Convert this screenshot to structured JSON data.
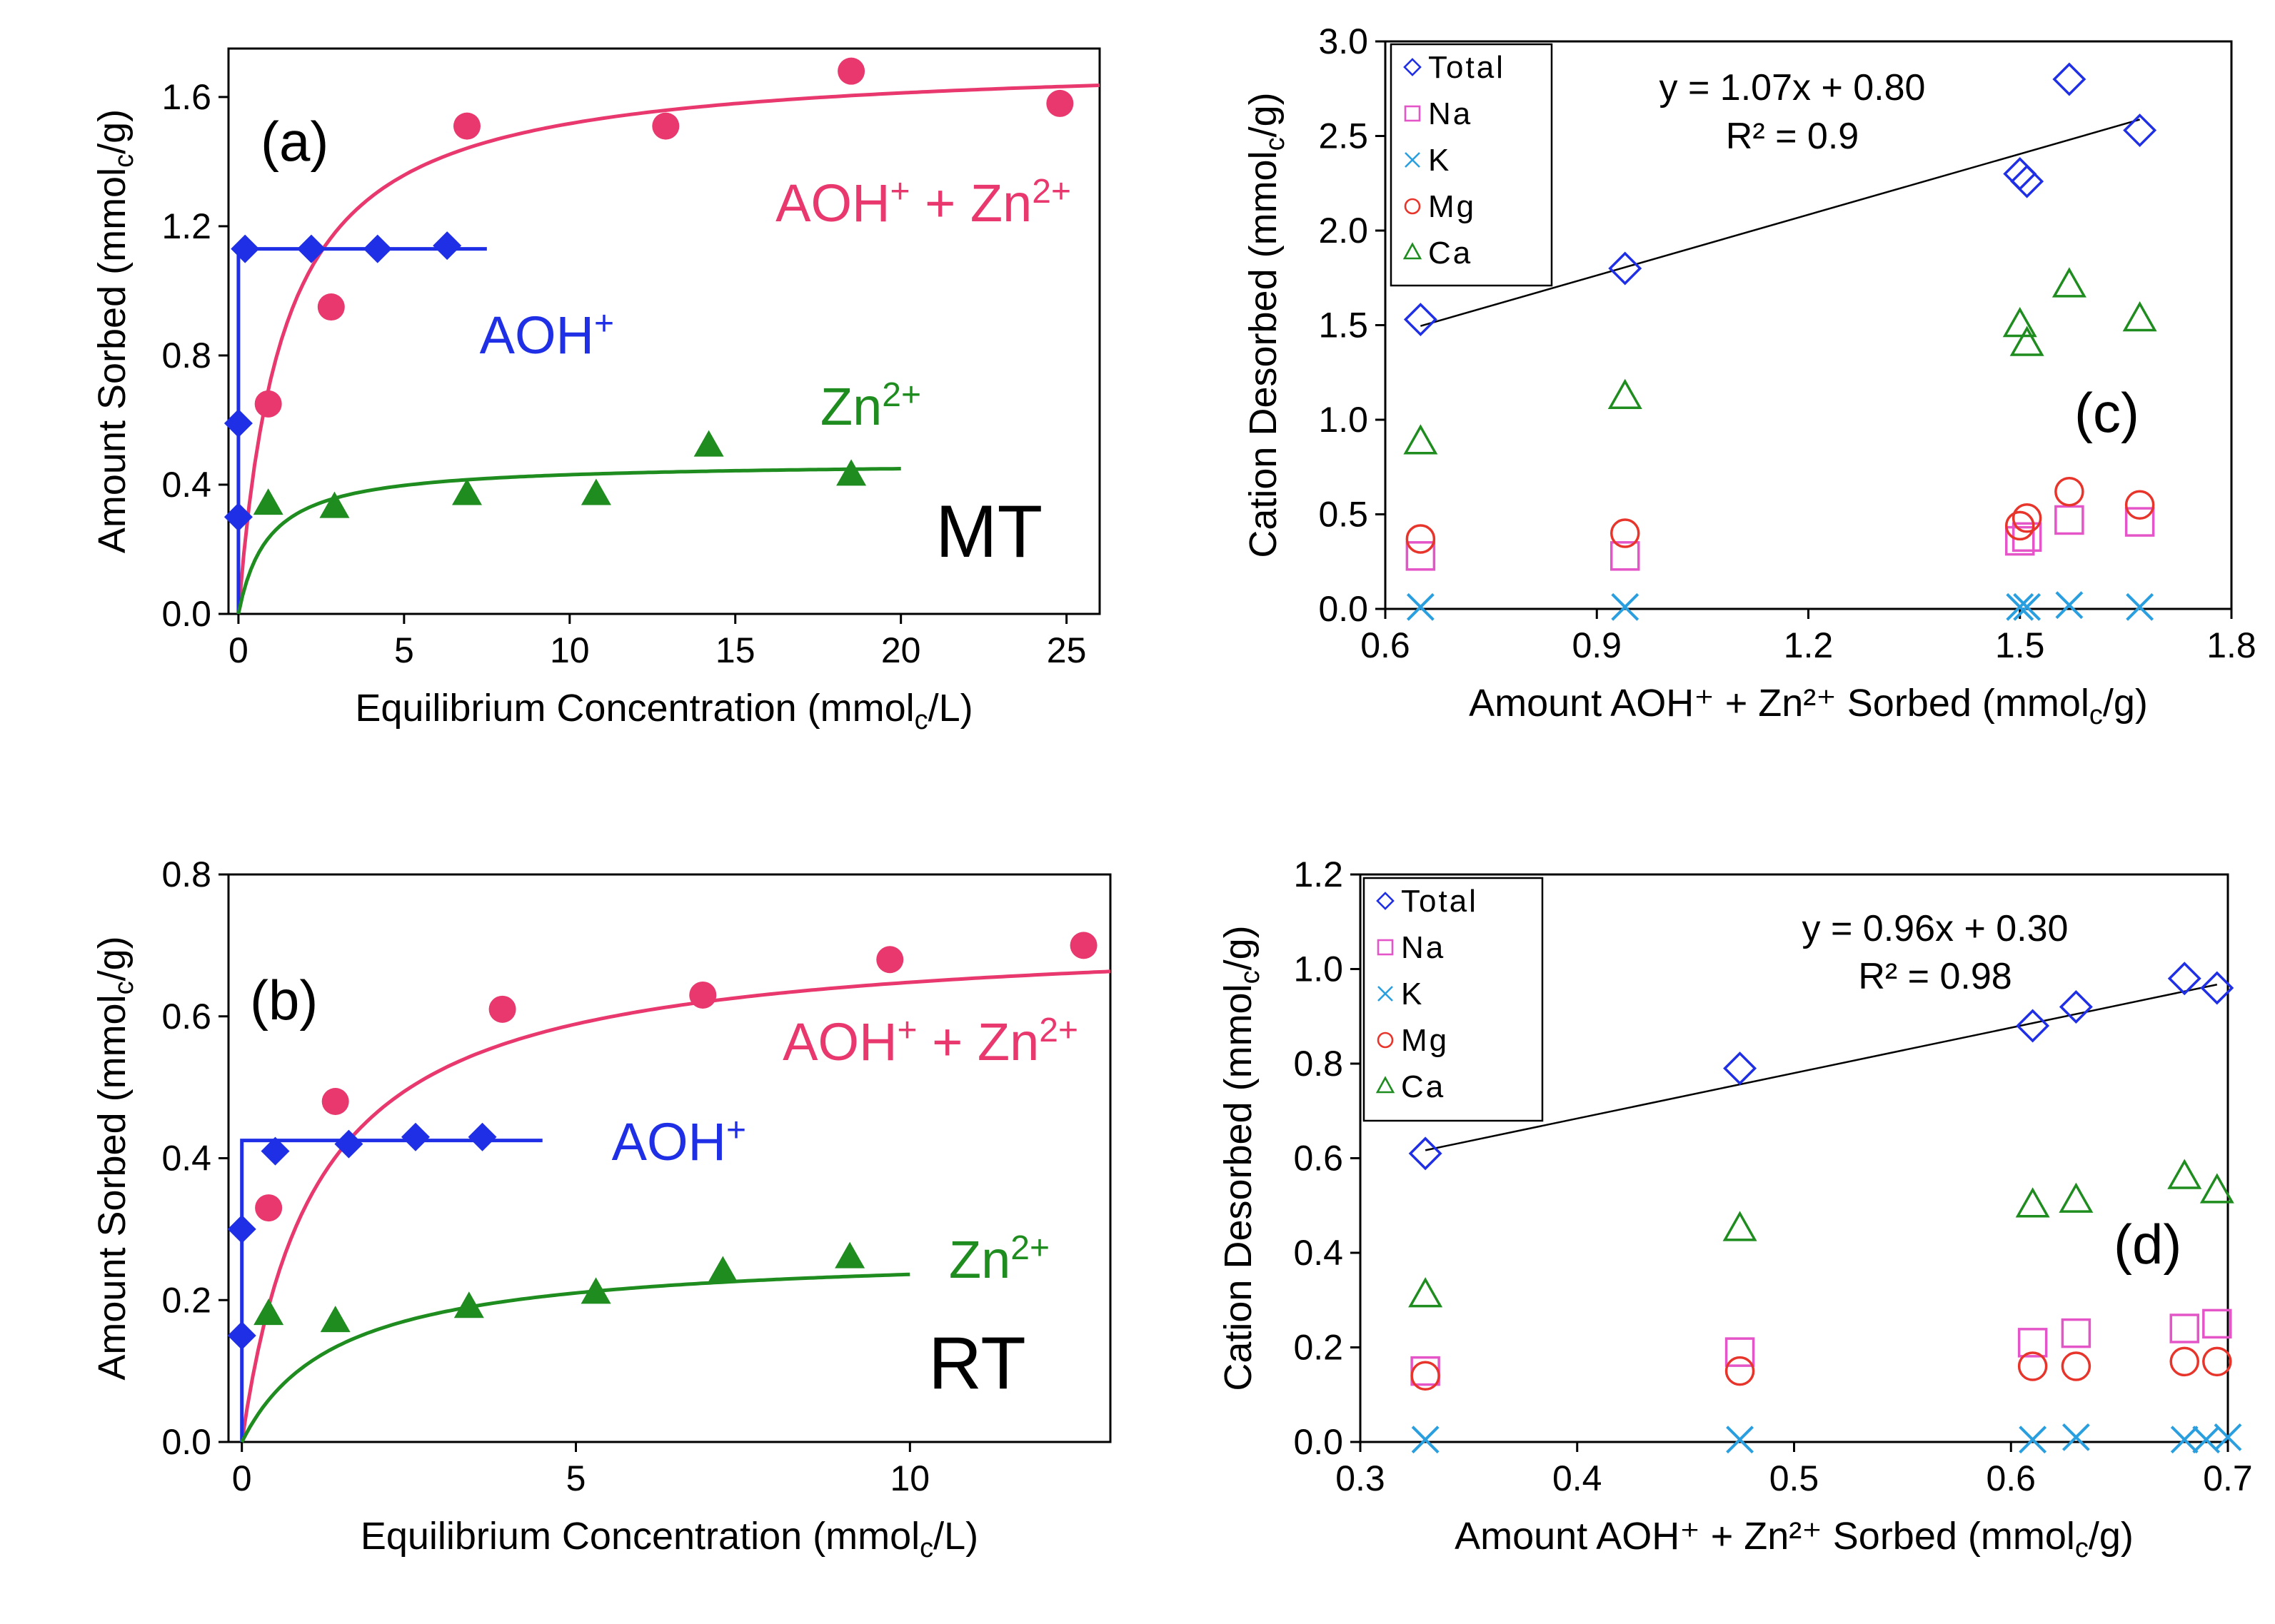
{
  "colors": {
    "pink": "#e8386e",
    "blue": "#1f2fe6",
    "green": "#1e8c1e",
    "magenta": "#e455c8",
    "cyan": "#2a9fe0",
    "red": "#e8352b",
    "black": "#000000"
  },
  "chart_data": [
    {
      "id": "a",
      "type": "scatter",
      "panel_label": "(a)",
      "tag": "MT",
      "xlabel": "Equilibrium Concentration (mmol",
      "xlabel_sub": "c",
      "xlabel_end": "/L)",
      "ylabel": "Amount Sorbed (mmol",
      "ylabel_sub": "c",
      "ylabel_end": "/g)",
      "xlim": [
        -0.3,
        26
      ],
      "ylim": [
        0,
        1.75
      ],
      "xticks": [
        0,
        5,
        10,
        15,
        20,
        25
      ],
      "yticks": [
        0.0,
        0.4,
        0.8,
        1.2,
        1.6
      ],
      "ytick_labels": [
        "0.0",
        "0.4",
        "0.8",
        "1.2",
        "1.6"
      ],
      "series": [
        {
          "name": "AOH⁺ + Zn²⁺",
          "color": "#e8386e",
          "marker": "circle",
          "x": [
            0.9,
            2.8,
            6.9,
            12.9,
            18.5,
            24.8
          ],
          "y": [
            0.65,
            0.95,
            1.51,
            1.51,
            1.68,
            1.58
          ],
          "fit": {
            "qmax": 1.72,
            "k": 0.75,
            "x_end": 26
          },
          "label_parts": [
            "AOH",
            "+",
            " + Zn",
            "2+"
          ]
        },
        {
          "name": "AOH⁺",
          "color": "#1f2fe6",
          "marker": "diamond",
          "x": [
            0,
            0,
            0.2,
            2.2,
            4.2,
            6.3
          ],
          "y": [
            0.3,
            0.59,
            1.13,
            1.13,
            1.13,
            1.14
          ],
          "fit": {
            "step_x": 0.05,
            "level": 1.13,
            "x_end": 7.5
          },
          "label_parts": [
            "AOH",
            "+"
          ]
        },
        {
          "name": "Zn²⁺",
          "color": "#1e8c1e",
          "marker": "triangle",
          "x": [
            0.9,
            2.9,
            6.9,
            10.8,
            14.2,
            18.5
          ],
          "y": [
            0.34,
            0.33,
            0.37,
            0.37,
            0.52,
            0.43
          ],
          "fit": {
            "qmax": 0.47,
            "k": 1.1,
            "x_end": 20
          },
          "label_parts": [
            "Zn",
            "2+"
          ]
        }
      ]
    },
    {
      "id": "b",
      "type": "scatter",
      "panel_label": "(b)",
      "tag": "RT",
      "xlabel": "Equilibrium Concentration (mmol",
      "xlabel_sub": "c",
      "xlabel_end": "/L)",
      "ylabel": "Amount Sorbed (mmol",
      "ylabel_sub": "c",
      "ylabel_end": "/g)",
      "xlim": [
        -0.2,
        13
      ],
      "ylim": [
        0,
        0.8
      ],
      "xticks": [
        0,
        5,
        10
      ],
      "yticks": [
        0.0,
        0.2,
        0.4,
        0.6,
        0.8
      ],
      "ytick_labels": [
        "0.0",
        "0.2",
        "0.4",
        "0.6",
        "0.8"
      ],
      "series": [
        {
          "name": "AOH⁺ + Zn²⁺",
          "color": "#e8386e",
          "marker": "circle",
          "x": [
            0.4,
            1.4,
            3.9,
            6.9,
            9.7,
            12.6
          ],
          "y": [
            0.33,
            0.48,
            0.61,
            0.63,
            0.68,
            0.7
          ],
          "fit": {
            "qmax": 0.72,
            "k": 0.9,
            "x_end": 13
          },
          "label_parts": [
            "AOH",
            "+",
            " + Zn",
            "2+"
          ]
        },
        {
          "name": "AOH⁺",
          "color": "#1f2fe6",
          "marker": "diamond",
          "x": [
            0,
            0,
            0.5,
            1.6,
            2.6,
            3.6
          ],
          "y": [
            0.15,
            0.3,
            0.41,
            0.42,
            0.43,
            0.43
          ],
          "fit": {
            "step_x": 0.03,
            "level": 0.425,
            "x_end": 4.5
          },
          "label_parts": [
            "AOH",
            "+"
          ]
        },
        {
          "name": "Zn²⁺",
          "color": "#1e8c1e",
          "marker": "triangle",
          "x": [
            0.4,
            1.4,
            3.4,
            5.3,
            7.2,
            9.1
          ],
          "y": [
            0.18,
            0.17,
            0.19,
            0.21,
            0.24,
            0.26
          ],
          "fit": {
            "qmax": 0.27,
            "k": 0.7,
            "x_end": 10
          },
          "label_parts": [
            "Zn",
            "2+"
          ]
        }
      ]
    },
    {
      "id": "c",
      "type": "scatter",
      "panel_label": "(c)",
      "xlabel": "Amount AOH⁺ + Zn²⁺ Sorbed (mmol",
      "xlabel_sub": "c",
      "xlabel_end": "/g)",
      "ylabel": "Cation Desorbed (mmol",
      "ylabel_sub": "c",
      "ylabel_end": "/g)",
      "xlim": [
        0.6,
        1.8
      ],
      "ylim": [
        0,
        3.0
      ],
      "xticks": [
        0.6,
        0.9,
        1.2,
        1.5,
        1.8
      ],
      "xtick_labels": [
        "0.6",
        "0.9",
        "1.2",
        "1.5",
        "1.8"
      ],
      "yticks": [
        0.0,
        0.5,
        1.0,
        1.5,
        2.0,
        2.5,
        3.0
      ],
      "ytick_labels": [
        "0.0",
        "0.5",
        "1.0",
        "1.5",
        "2.0",
        "2.5",
        "3.0"
      ],
      "equation": "y = 1.07x + 0.80",
      "r2": "R² = 0.9",
      "trend": {
        "slope": 1.07,
        "intercept": 0.8,
        "x0": 0.65,
        "x1": 1.67
      },
      "series": [
        {
          "name": "Total",
          "color": "#1f2fe6",
          "marker": "diamond_open",
          "x": [
            0.65,
            0.94,
            1.5,
            1.51,
            1.57,
            1.67
          ],
          "y": [
            1.53,
            1.8,
            2.3,
            2.26,
            2.8,
            2.53
          ]
        },
        {
          "name": "Na",
          "color": "#e455c8",
          "marker": "square_open",
          "x": [
            0.65,
            0.94,
            1.5,
            1.51,
            1.57,
            1.67
          ],
          "y": [
            0.28,
            0.28,
            0.36,
            0.38,
            0.47,
            0.46
          ]
        },
        {
          "name": "K",
          "color": "#2a9fe0",
          "marker": "x",
          "x": [
            0.65,
            0.94,
            1.5,
            1.51,
            1.57,
            1.67
          ],
          "y": [
            0.01,
            0.01,
            0.01,
            0.01,
            0.02,
            0.01
          ]
        },
        {
          "name": "Mg",
          "color": "#e8352b",
          "marker": "circle_open",
          "x": [
            0.65,
            0.94,
            1.5,
            1.51,
            1.57,
            1.67
          ],
          "y": [
            0.37,
            0.4,
            0.44,
            0.48,
            0.62,
            0.55
          ]
        },
        {
          "name": "Ca",
          "color": "#1e8c1e",
          "marker": "triangle_open",
          "x": [
            0.65,
            0.94,
            1.5,
            1.51,
            1.57,
            1.67
          ],
          "y": [
            0.88,
            1.12,
            1.5,
            1.4,
            1.71,
            1.53
          ]
        }
      ]
    },
    {
      "id": "d",
      "type": "scatter",
      "panel_label": "(d)",
      "xlabel": "Amount AOH⁺ + Zn²⁺ Sorbed (mmol",
      "xlabel_sub": "c",
      "xlabel_end": "/g)",
      "ylabel": "Cation Desorbed (mmol",
      "ylabel_sub": "c",
      "ylabel_end": "/g)",
      "xlim": [
        0.3,
        0.7
      ],
      "ylim": [
        0,
        1.2
      ],
      "xticks": [
        0.3,
        0.4,
        0.5,
        0.6,
        0.7
      ],
      "xtick_labels": [
        "0.3",
        "0.4",
        "0.5",
        "0.6",
        "0.7"
      ],
      "yticks": [
        0.0,
        0.2,
        0.4,
        0.6,
        0.8,
        1.0,
        1.2
      ],
      "ytick_labels": [
        "0.0",
        "0.2",
        "0.4",
        "0.6",
        "0.8",
        "1.0",
        "1.2"
      ],
      "equation": "y = 0.96x + 0.30",
      "r2": "R² = 0.98",
      "trend": {
        "slope": 0.96,
        "intercept": 0.3,
        "x0": 0.33,
        "x1": 0.695
      },
      "series": [
        {
          "name": "Total",
          "color": "#1f2fe6",
          "marker": "diamond_open",
          "x": [
            0.33,
            0.475,
            0.61,
            0.63,
            0.68,
            0.695
          ],
          "y": [
            0.61,
            0.79,
            0.88,
            0.92,
            0.98,
            0.96
          ]
        },
        {
          "name": "Na",
          "color": "#e455c8",
          "marker": "square_open",
          "x": [
            0.33,
            0.475,
            0.61,
            0.63,
            0.68,
            0.695
          ],
          "y": [
            0.15,
            0.19,
            0.21,
            0.23,
            0.24,
            0.25
          ]
        },
        {
          "name": "K",
          "color": "#2a9fe0",
          "marker": "x",
          "x": [
            0.33,
            0.475,
            0.61,
            0.63,
            0.68,
            0.69,
            0.7
          ],
          "y": [
            0.005,
            0.005,
            0.005,
            0.01,
            0.005,
            0.005,
            0.01
          ]
        },
        {
          "name": "Mg",
          "color": "#e8352b",
          "marker": "circle_open",
          "x": [
            0.33,
            0.475,
            0.61,
            0.63,
            0.68,
            0.695
          ],
          "y": [
            0.14,
            0.15,
            0.16,
            0.16,
            0.17,
            0.17
          ]
        },
        {
          "name": "Ca",
          "color": "#1e8c1e",
          "marker": "triangle_open",
          "x": [
            0.33,
            0.475,
            0.61,
            0.63,
            0.68,
            0.695
          ],
          "y": [
            0.31,
            0.45,
            0.5,
            0.51,
            0.56,
            0.53
          ]
        }
      ]
    }
  ]
}
